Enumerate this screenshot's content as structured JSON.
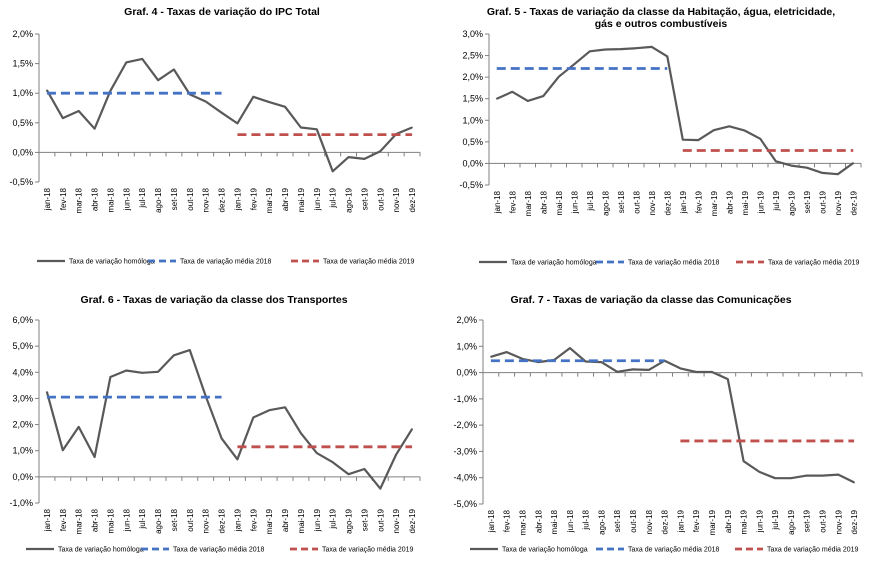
{
  "colors": {
    "homologa": "#595959",
    "media2018": "#4472C4",
    "media2019": "#C0504D"
  },
  "chart_data": [
    {
      "type": "line",
      "title": "Graf. 4 - Taxas de variação do IPC Total",
      "title_lines": [
        "Graf. 4 - Taxas de variação do IPC Total"
      ],
      "categories": [
        "jan-18",
        "fev-18",
        "mar-18",
        "abr-18",
        "mai-18",
        "jun-18",
        "jul-18",
        "ago-18",
        "set-18",
        "out-18",
        "nov-18",
        "dez-18",
        "jan-19",
        "fev-19",
        "mar-19",
        "abr-19",
        "mai-19",
        "jun-19",
        "jul-19",
        "ago-19",
        "set-19",
        "out-19",
        "nov-19",
        "dez-19"
      ],
      "ylim": [
        -0.5,
        2.0
      ],
      "yticks": [
        -0.5,
        0.0,
        0.5,
        1.0,
        1.5,
        2.0
      ],
      "ytick_labels": [
        "-0,5%",
        "0,0%",
        "0,5%",
        "1,0%",
        "1,5%",
        "2,0%"
      ],
      "series": [
        {
          "name": "Taxa de variação homóloga",
          "style": "solid",
          "values": [
            1.05,
            0.58,
            0.7,
            0.4,
            1.04,
            1.52,
            1.58,
            1.22,
            1.4,
            0.98,
            0.86,
            0.67,
            0.49,
            0.94,
            0.85,
            0.77,
            0.42,
            0.39,
            -0.32,
            -0.08,
            -0.11,
            0.02,
            0.31,
            0.42
          ]
        },
        {
          "name": "Taxa de variação média 2018",
          "style": "dash",
          "mean": 1.0,
          "from": 0,
          "to": 11
        },
        {
          "name": "Taxa de variação média 2019",
          "style": "dash",
          "mean": 0.3,
          "from": 12,
          "to": 23
        }
      ]
    },
    {
      "type": "line",
      "title": "Graf. 5 - Taxas de variação da classe da Habitação, água, eletricidade, gás e outros combustíveis",
      "title_lines": [
        "Graf. 5 - Taxas de variação da classe da Habitação, água, eletricidade,",
        "gás e outros combustíveis"
      ],
      "categories": [
        "jan-18",
        "fev-18",
        "mar-18",
        "abr-18",
        "mai-18",
        "jun-18",
        "jul-18",
        "ago-18",
        "set-18",
        "out-18",
        "nov-18",
        "dez-18",
        "jan-19",
        "fev-19",
        "mar-19",
        "abr-19",
        "mai-19",
        "jun-19",
        "jul-19",
        "ago-19",
        "set-19",
        "out-19",
        "nov-19",
        "dez-19"
      ],
      "ylim": [
        -0.5,
        3.0
      ],
      "yticks": [
        -0.5,
        0.0,
        0.5,
        1.0,
        1.5,
        2.0,
        2.5,
        3.0
      ],
      "ytick_labels": [
        "-0,5%",
        "0,0%",
        "0,5%",
        "1,0%",
        "1,5%",
        "2,0%",
        "2,5%",
        "3,0%"
      ],
      "series": [
        {
          "name": "Taxa de variação homóloga",
          "style": "solid",
          "values": [
            1.5,
            1.66,
            1.45,
            1.56,
            2.01,
            2.3,
            2.6,
            2.64,
            2.65,
            2.67,
            2.7,
            2.48,
            0.55,
            0.54,
            0.77,
            0.86,
            0.76,
            0.57,
            0.05,
            -0.05,
            -0.1,
            -0.22,
            -0.25,
            0.01
          ]
        },
        {
          "name": "Taxa de variação média 2018",
          "style": "dash",
          "mean": 2.2,
          "from": 0,
          "to": 11
        },
        {
          "name": "Taxa de variação média 2019",
          "style": "dash",
          "mean": 0.3,
          "from": 12,
          "to": 23
        }
      ]
    },
    {
      "type": "line",
      "title": "Graf. 6 - Taxas de variação da classe dos Transportes",
      "title_lines": [
        "Graf. 6  - Taxas de variação da classe dos Transportes"
      ],
      "categories": [
        "jan-18",
        "fev-18",
        "mar-18",
        "abr-18",
        "mai-18",
        "jun-18",
        "jul-18",
        "ago-18",
        "set-18",
        "out-18",
        "nov-18",
        "dez-18",
        "jan-19",
        "fev-19",
        "mar-19",
        "abr-19",
        "mai-19",
        "jun-19",
        "jul-19",
        "ago-19",
        "set-19",
        "out-19",
        "nov-19",
        "dez-19"
      ],
      "ylim": [
        -1.0,
        6.0
      ],
      "yticks": [
        -1.0,
        0.0,
        1.0,
        2.0,
        3.0,
        4.0,
        5.0,
        6.0
      ],
      "ytick_labels": [
        "-1,0%",
        "0,0%",
        "1,0%",
        "2,0%",
        "3,0%",
        "4,0%",
        "5,0%",
        "6,0%"
      ],
      "series": [
        {
          "name": "Taxa de variação homóloga",
          "style": "solid",
          "values": [
            3.25,
            1.02,
            1.91,
            0.76,
            3.82,
            4.07,
            3.98,
            4.02,
            4.65,
            4.85,
            3.09,
            1.47,
            0.67,
            2.27,
            2.55,
            2.66,
            1.67,
            0.91,
            0.56,
            0.1,
            0.3,
            -0.45,
            0.86,
            1.83
          ]
        },
        {
          "name": "Taxa de variação média 2018",
          "style": "dash",
          "mean": 3.05,
          "from": 0,
          "to": 11
        },
        {
          "name": "Taxa de variação média 2019",
          "style": "dash",
          "mean": 1.15,
          "from": 12,
          "to": 23
        }
      ]
    },
    {
      "type": "line",
      "title": "Graf. 7 - Taxas de variação da classe das Comunicações",
      "title_lines": [
        "Graf. 7 - Taxas de variação da classe das Comunicações"
      ],
      "categories": [
        "jan-18",
        "fev-18",
        "mar-18",
        "abr-18",
        "mai-18",
        "jun-18",
        "jul-18",
        "ago-18",
        "set-18",
        "out-18",
        "nov-18",
        "dez-18",
        "jan-19",
        "fev-19",
        "mar-19",
        "abr-19",
        "mai-19",
        "jun-19",
        "jul-19",
        "ago-19",
        "set-19",
        "out-19",
        "nov-19",
        "dez-19"
      ],
      "ylim": [
        -5.0,
        2.0
      ],
      "yticks": [
        -5.0,
        -4.0,
        -3.0,
        -2.0,
        -1.0,
        0.0,
        1.0,
        2.0
      ],
      "ytick_labels": [
        "-5,0%",
        "-4,0%",
        "-3,0%",
        "-2,0%",
        "-1,0%",
        "0,0%",
        "1,0%",
        "2,0%"
      ],
      "series": [
        {
          "name": "Taxa de variação homóloga",
          "style": "solid",
          "values": [
            0.6,
            0.78,
            0.52,
            0.4,
            0.48,
            0.93,
            0.42,
            0.4,
            0.03,
            0.12,
            0.1,
            0.45,
            0.16,
            0.02,
            0.02,
            -0.25,
            -3.37,
            -3.78,
            -4.02,
            -4.02,
            -3.92,
            -3.92,
            -3.88,
            -4.18
          ]
        },
        {
          "name": "Taxa de variação média 2018",
          "style": "dash",
          "mean": 0.45,
          "from": 0,
          "to": 11
        },
        {
          "name": "Taxa de variação média 2019",
          "style": "dash",
          "mean": -2.6,
          "from": 12,
          "to": 23
        }
      ]
    }
  ]
}
